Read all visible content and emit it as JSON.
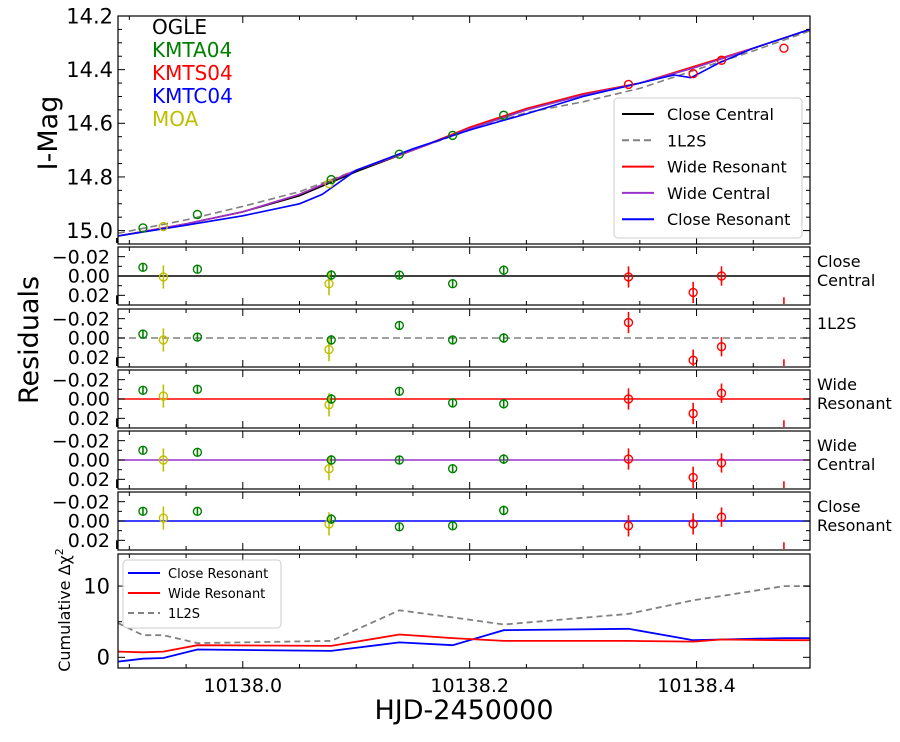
{
  "colors": {
    "OGLE": "#000000",
    "KMTA04": "#008000",
    "KMTS04": "#ff0000",
    "KMTC04": "#0000ff",
    "MOA": "#bfbf00",
    "close_central": "#000000",
    "one_l2s": "#808080",
    "wide_resonant": "#ff0000",
    "wide_central": "#9932cc",
    "close_resonant": "#0000ff"
  },
  "chart_data": {
    "type": "line",
    "xlabel": "HJD-2450000",
    "xlim": [
      10137.89,
      10138.5
    ],
    "x_ticks": [
      10138.0,
      10138.2,
      10138.4
    ],
    "x_tick_labels": [
      "10138.0",
      "10138.2",
      "10138.4"
    ],
    "observatories": [
      "OGLE",
      "KMTA04",
      "KMTS04",
      "KMTC04",
      "MOA"
    ],
    "main_panel": {
      "ylabel": "I-Mag",
      "ylim": [
        15.05,
        14.2
      ],
      "y_ticks": [
        14.2,
        14.4,
        14.6,
        14.8,
        15.0
      ],
      "y_tick_labels": [
        "14.2",
        "14.4",
        "14.6",
        "14.8",
        "15.0"
      ],
      "model_legend": [
        "Close Central",
        "1L2S",
        "Wide Resonant",
        "Wide Central",
        "Close Resonant"
      ],
      "models": [
        {
          "name": "Close Central",
          "color_key": "close_central",
          "dash": "",
          "x": [
            10137.89,
            10137.95,
            10138.0,
            10138.05,
            10138.1,
            10138.15,
            10138.2,
            10138.25,
            10138.3,
            10138.35,
            10138.4,
            10138.45,
            10138.5
          ],
          "y": [
            15.02,
            14.975,
            14.93,
            14.87,
            14.78,
            14.7,
            14.62,
            14.55,
            14.495,
            14.45,
            14.39,
            14.32,
            14.25
          ]
        },
        {
          "name": "1L2S",
          "color_key": "one_l2s",
          "dash": "7,4",
          "x": [
            10137.89,
            10137.95,
            10138.0,
            10138.05,
            10138.1,
            10138.15,
            10138.2,
            10138.25,
            10138.3,
            10138.35,
            10138.4,
            10138.45,
            10138.5
          ],
          "y": [
            15.01,
            14.96,
            14.91,
            14.855,
            14.775,
            14.7,
            14.625,
            14.56,
            14.52,
            14.47,
            14.4,
            14.33,
            14.255
          ]
        },
        {
          "name": "Wide Resonant",
          "color_key": "wide_resonant",
          "dash": "",
          "x": [
            10137.89,
            10137.95,
            10138.0,
            10138.05,
            10138.1,
            10138.15,
            10138.2,
            10138.25,
            10138.3,
            10138.35,
            10138.4,
            10138.45,
            10138.5
          ],
          "y": [
            15.02,
            14.975,
            14.93,
            14.865,
            14.775,
            14.7,
            14.615,
            14.545,
            14.49,
            14.45,
            14.385,
            14.32,
            14.25
          ]
        },
        {
          "name": "Wide Central",
          "color_key": "wide_central",
          "dash": "",
          "x": [
            10137.89,
            10137.95,
            10138.0,
            10138.05,
            10138.1,
            10138.15,
            10138.2,
            10138.25,
            10138.3,
            10138.35,
            10138.4,
            10138.45,
            10138.5
          ],
          "y": [
            15.02,
            14.975,
            14.93,
            14.865,
            14.775,
            14.7,
            14.62,
            14.55,
            14.495,
            14.45,
            14.39,
            14.32,
            14.25
          ]
        },
        {
          "name": "Close Resonant",
          "color_key": "close_resonant",
          "dash": "",
          "x": [
            10137.89,
            10137.95,
            10138.0,
            10138.05,
            10138.07,
            10138.1,
            10138.15,
            10138.2,
            10138.25,
            10138.3,
            10138.35,
            10138.38,
            10138.395,
            10138.42,
            10138.45,
            10138.5
          ],
          "y": [
            15.02,
            14.98,
            14.945,
            14.9,
            14.865,
            14.775,
            14.695,
            14.625,
            14.565,
            14.5,
            14.45,
            14.42,
            14.43,
            14.375,
            14.32,
            14.25
          ]
        }
      ],
      "data_points": [
        {
          "obs": "OGLE",
          "x": 10137.889,
          "y": 15.04,
          "err": 0
        },
        {
          "obs": "KMTA04",
          "x": 10137.912,
          "y": 14.99,
          "err": 0
        },
        {
          "obs": "MOA",
          "x": 10137.93,
          "y": 14.985,
          "err": 0
        },
        {
          "obs": "KMTA04",
          "x": 10137.96,
          "y": 14.94,
          "err": 0
        },
        {
          "obs": "MOA",
          "x": 10138.076,
          "y": 14.825,
          "err": 0
        },
        {
          "obs": "KMTA04",
          "x": 10138.078,
          "y": 14.81,
          "err": 0
        },
        {
          "obs": "KMTA04",
          "x": 10138.138,
          "y": 14.715,
          "err": 0
        },
        {
          "obs": "KMTA04",
          "x": 10138.185,
          "y": 14.645,
          "err": 0
        },
        {
          "obs": "KMTA04",
          "x": 10138.23,
          "y": 14.57,
          "err": 0
        },
        {
          "obs": "KMTS04",
          "x": 10138.34,
          "y": 14.455,
          "err": 0
        },
        {
          "obs": "KMTS04",
          "x": 10138.397,
          "y": 14.415,
          "err": 0
        },
        {
          "obs": "KMTS04",
          "x": 10138.422,
          "y": 14.365,
          "err": 0
        },
        {
          "obs": "KMTS04",
          "x": 10138.477,
          "y": 14.32,
          "err": 0
        }
      ]
    },
    "residuals": {
      "ylabel": "Residuals",
      "ylim": [
        -0.03,
        0.03
      ],
      "y_ticks": [
        -0.02,
        0.0,
        0.02
      ],
      "y_tick_labels": [
        "−0.02",
        "0.00",
        "0.02"
      ],
      "panels": [
        {
          "label": "Close\nCentral",
          "color_key": "close_central",
          "dash": "",
          "points": [
            {
              "obs": "OGLE",
              "x": 10137.889,
              "y": 0.028,
              "err": 0.008
            },
            {
              "obs": "KMTA04",
              "x": 10137.912,
              "y": -0.009,
              "err": 0.004
            },
            {
              "obs": "MOA",
              "x": 10137.93,
              "y": 0.001,
              "err": 0.012
            },
            {
              "obs": "KMTA04",
              "x": 10137.96,
              "y": -0.007,
              "err": 0.004
            },
            {
              "obs": "MOA",
              "x": 10138.076,
              "y": 0.008,
              "err": 0.012
            },
            {
              "obs": "KMTA04",
              "x": 10138.078,
              "y": -0.001,
              "err": 0.005
            },
            {
              "obs": "KMTA04",
              "x": 10138.138,
              "y": -0.001,
              "err": 0.004
            },
            {
              "obs": "KMTA04",
              "x": 10138.185,
              "y": 0.008,
              "err": 0.004
            },
            {
              "obs": "KMTA04",
              "x": 10138.23,
              "y": -0.006,
              "err": 0.005
            },
            {
              "obs": "KMTS04",
              "x": 10138.34,
              "y": 0.001,
              "err": 0.011
            },
            {
              "obs": "KMTS04",
              "x": 10138.397,
              "y": 0.017,
              "err": 0.011
            },
            {
              "obs": "KMTS04",
              "x": 10138.422,
              "y": 0.0,
              "err": 0.01
            },
            {
              "obs": "KMTS04",
              "x": 10138.477,
              "y": 0.03,
              "err": 0.008
            }
          ]
        },
        {
          "label": "1L2S",
          "color_key": "one_l2s",
          "dash": "7,4",
          "points": [
            {
              "obs": "OGLE",
              "x": 10137.889,
              "y": 0.028,
              "err": 0.008
            },
            {
              "obs": "KMTA04",
              "x": 10137.912,
              "y": -0.004,
              "err": 0.004
            },
            {
              "obs": "MOA",
              "x": 10137.93,
              "y": 0.002,
              "err": 0.012
            },
            {
              "obs": "KMTA04",
              "x": 10137.96,
              "y": -0.001,
              "err": 0.004
            },
            {
              "obs": "MOA",
              "x": 10138.076,
              "y": 0.012,
              "err": 0.012
            },
            {
              "obs": "KMTA04",
              "x": 10138.078,
              "y": 0.002,
              "err": 0.005
            },
            {
              "obs": "KMTA04",
              "x": 10138.138,
              "y": -0.013,
              "err": 0.004
            },
            {
              "obs": "KMTA04",
              "x": 10138.185,
              "y": 0.002,
              "err": 0.004
            },
            {
              "obs": "KMTA04",
              "x": 10138.23,
              "y": 0.0,
              "err": 0.005
            },
            {
              "obs": "KMTS04",
              "x": 10138.34,
              "y": -0.016,
              "err": 0.011
            },
            {
              "obs": "KMTS04",
              "x": 10138.397,
              "y": 0.023,
              "err": 0.011
            },
            {
              "obs": "KMTS04",
              "x": 10138.422,
              "y": 0.009,
              "err": 0.01
            },
            {
              "obs": "KMTS04",
              "x": 10138.477,
              "y": 0.03,
              "err": 0.008
            }
          ]
        },
        {
          "label": "Wide\nResonant",
          "color_key": "wide_resonant",
          "dash": "",
          "points": [
            {
              "obs": "OGLE",
              "x": 10137.889,
              "y": 0.028,
              "err": 0.008
            },
            {
              "obs": "KMTA04",
              "x": 10137.912,
              "y": -0.009,
              "err": 0.004
            },
            {
              "obs": "MOA",
              "x": 10137.93,
              "y": -0.003,
              "err": 0.012
            },
            {
              "obs": "KMTA04",
              "x": 10137.96,
              "y": -0.01,
              "err": 0.004
            },
            {
              "obs": "MOA",
              "x": 10138.076,
              "y": 0.006,
              "err": 0.012
            },
            {
              "obs": "KMTA04",
              "x": 10138.078,
              "y": 0.0,
              "err": 0.005
            },
            {
              "obs": "KMTA04",
              "x": 10138.138,
              "y": -0.008,
              "err": 0.004
            },
            {
              "obs": "KMTA04",
              "x": 10138.185,
              "y": 0.004,
              "err": 0.004
            },
            {
              "obs": "KMTA04",
              "x": 10138.23,
              "y": 0.005,
              "err": 0.005
            },
            {
              "obs": "KMTS04",
              "x": 10138.34,
              "y": 0.0,
              "err": 0.011
            },
            {
              "obs": "KMTS04",
              "x": 10138.397,
              "y": 0.015,
              "err": 0.011
            },
            {
              "obs": "KMTS04",
              "x": 10138.422,
              "y": -0.006,
              "err": 0.01
            },
            {
              "obs": "KMTS04",
              "x": 10138.477,
              "y": 0.03,
              "err": 0.008
            }
          ]
        },
        {
          "label": "Wide\nCentral",
          "color_key": "wide_central",
          "dash": "",
          "points": [
            {
              "obs": "OGLE",
              "x": 10137.889,
              "y": 0.028,
              "err": 0.008
            },
            {
              "obs": "KMTA04",
              "x": 10137.912,
              "y": -0.01,
              "err": 0.004
            },
            {
              "obs": "MOA",
              "x": 10137.93,
              "y": 0.0,
              "err": 0.012
            },
            {
              "obs": "KMTA04",
              "x": 10137.96,
              "y": -0.008,
              "err": 0.004
            },
            {
              "obs": "MOA",
              "x": 10138.076,
              "y": 0.009,
              "err": 0.012
            },
            {
              "obs": "KMTA04",
              "x": 10138.078,
              "y": 0.0,
              "err": 0.005
            },
            {
              "obs": "KMTA04",
              "x": 10138.138,
              "y": 0.0,
              "err": 0.004
            },
            {
              "obs": "KMTA04",
              "x": 10138.185,
              "y": 0.009,
              "err": 0.004
            },
            {
              "obs": "KMTA04",
              "x": 10138.23,
              "y": -0.001,
              "err": 0.005
            },
            {
              "obs": "KMTS04",
              "x": 10138.34,
              "y": -0.001,
              "err": 0.011
            },
            {
              "obs": "KMTS04",
              "x": 10138.397,
              "y": 0.018,
              "err": 0.011
            },
            {
              "obs": "KMTS04",
              "x": 10138.422,
              "y": 0.003,
              "err": 0.01
            },
            {
              "obs": "KMTS04",
              "x": 10138.477,
              "y": 0.03,
              "err": 0.008
            }
          ]
        },
        {
          "label": "Close\nResonant",
          "color_key": "close_resonant",
          "dash": "",
          "points": [
            {
              "obs": "OGLE",
              "x": 10137.889,
              "y": 0.028,
              "err": 0.008
            },
            {
              "obs": "KMTA04",
              "x": 10137.912,
              "y": -0.01,
              "err": 0.004
            },
            {
              "obs": "MOA",
              "x": 10137.93,
              "y": -0.003,
              "err": 0.012
            },
            {
              "obs": "KMTA04",
              "x": 10137.96,
              "y": -0.01,
              "err": 0.004
            },
            {
              "obs": "MOA",
              "x": 10138.076,
              "y": 0.003,
              "err": 0.012
            },
            {
              "obs": "KMTA04",
              "x": 10138.078,
              "y": -0.002,
              "err": 0.005
            },
            {
              "obs": "KMTA04",
              "x": 10138.138,
              "y": 0.006,
              "err": 0.004
            },
            {
              "obs": "KMTA04",
              "x": 10138.185,
              "y": 0.005,
              "err": 0.004
            },
            {
              "obs": "KMTA04",
              "x": 10138.23,
              "y": -0.011,
              "err": 0.005
            },
            {
              "obs": "KMTS04",
              "x": 10138.34,
              "y": 0.005,
              "err": 0.011
            },
            {
              "obs": "KMTS04",
              "x": 10138.397,
              "y": 0.003,
              "err": 0.011
            },
            {
              "obs": "KMTS04",
              "x": 10138.422,
              "y": -0.004,
              "err": 0.01
            },
            {
              "obs": "KMTS04",
              "x": 10138.477,
              "y": 0.03,
              "err": 0.008
            }
          ]
        }
      ]
    },
    "cumulative": {
      "ylabel": "Cumulative Δχ",
      "ylabel_sup": "2",
      "ylim": [
        -1.5,
        14.5
      ],
      "y_ticks": [
        0,
        10
      ],
      "y_tick_labels": [
        "0",
        "10"
      ],
      "legend": [
        "Close Resonant",
        "Wide Resonant",
        "1L2S"
      ],
      "series": [
        {
          "name": "Close Resonant",
          "color_key": "close_resonant",
          "dash": "",
          "x": [
            10137.89,
            10137.912,
            10137.93,
            10137.96,
            10138.078,
            10138.138,
            10138.185,
            10138.23,
            10138.34,
            10138.397,
            10138.422,
            10138.477,
            10138.5
          ],
          "y": [
            -0.6,
            -0.2,
            -0.1,
            1.1,
            0.9,
            2.1,
            1.7,
            3.8,
            4.0,
            2.4,
            2.5,
            2.7,
            2.7
          ]
        },
        {
          "name": "Wide Resonant",
          "color_key": "wide_resonant",
          "dash": "",
          "x": [
            10137.89,
            10137.912,
            10137.93,
            10137.96,
            10138.078,
            10138.138,
            10138.185,
            10138.23,
            10138.34,
            10138.397,
            10138.422,
            10138.477,
            10138.5
          ],
          "y": [
            0.8,
            0.7,
            0.8,
            1.7,
            1.6,
            3.2,
            2.7,
            2.3,
            2.3,
            2.2,
            2.5,
            2.4,
            2.4
          ]
        },
        {
          "name": "1L2S",
          "color_key": "one_l2s",
          "dash": "6,4",
          "x": [
            10137.89,
            10137.912,
            10137.93,
            10137.96,
            10138.078,
            10138.138,
            10138.185,
            10138.23,
            10138.34,
            10138.397,
            10138.422,
            10138.477,
            10138.5
          ],
          "y": [
            4.8,
            3.1,
            3.1,
            2.0,
            2.3,
            6.6,
            5.6,
            4.6,
            6.1,
            8.0,
            8.6,
            10.0,
            10.0
          ]
        }
      ]
    }
  }
}
